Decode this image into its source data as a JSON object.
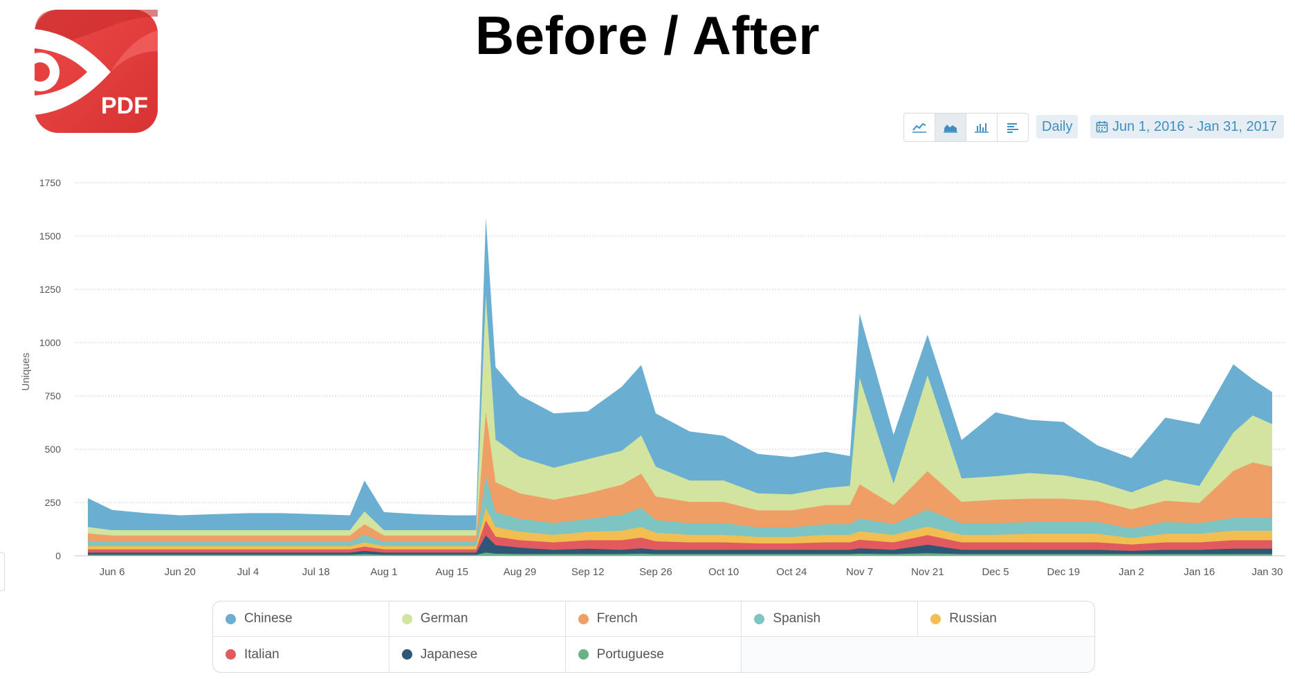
{
  "header": {
    "title": "Before / After",
    "logo_text": "PDF"
  },
  "toolbar": {
    "buttons": [
      {
        "icon": "line-chart-icon",
        "active": false
      },
      {
        "icon": "area-chart-icon",
        "active": true
      },
      {
        "icon": "bar-chart-icon",
        "active": false
      },
      {
        "icon": "horizontal-bar-icon",
        "active": false
      }
    ],
    "granularity": "Daily",
    "date_range": "Jun 1, 2016 - Jan 31, 2017",
    "date_icon": "calendar-icon"
  },
  "colors": {
    "accent": "#3e8fc0",
    "logo_red": "#e5403f"
  },
  "chart_data": {
    "type": "area",
    "stacked": true,
    "ylabel": "Uniques",
    "ylim": [
      0,
      1750
    ],
    "yticks": [
      "0",
      "250",
      "500",
      "750",
      "1000",
      "1250",
      "1500",
      "1750"
    ],
    "xlim": [
      "2016-06-01",
      "2017-01-31"
    ],
    "xticks": [
      {
        "label": "Jun 6",
        "date": "2016-06-06"
      },
      {
        "label": "Jun 20",
        "date": "2016-06-20"
      },
      {
        "label": "Jul 4",
        "date": "2016-07-04"
      },
      {
        "label": "Jul 18",
        "date": "2016-07-18"
      },
      {
        "label": "Aug 1",
        "date": "2016-08-01"
      },
      {
        "label": "Aug 15",
        "date": "2016-08-15"
      },
      {
        "label": "Aug 29",
        "date": "2016-08-29"
      },
      {
        "label": "Sep 12",
        "date": "2016-09-12"
      },
      {
        "label": "Sep 26",
        "date": "2016-09-26"
      },
      {
        "label": "Oct 10",
        "date": "2016-10-10"
      },
      {
        "label": "Oct 24",
        "date": "2016-10-24"
      },
      {
        "label": "Nov 7",
        "date": "2016-11-07"
      },
      {
        "label": "Nov 21",
        "date": "2016-11-21"
      },
      {
        "label": "Dec 5",
        "date": "2016-12-05"
      },
      {
        "label": "Dec 19",
        "date": "2016-12-19"
      },
      {
        "label": "Jan 2",
        "date": "2017-01-02"
      },
      {
        "label": "Jan 16",
        "date": "2017-01-16"
      },
      {
        "label": "Jan 30",
        "date": "2017-01-30"
      }
    ],
    "grid": true,
    "legend_position": "bottom",
    "x": [
      "2016-06-01",
      "2016-06-06",
      "2016-06-13",
      "2016-06-20",
      "2016-06-27",
      "2016-07-04",
      "2016-07-11",
      "2016-07-18",
      "2016-07-25",
      "2016-07-28",
      "2016-08-01",
      "2016-08-08",
      "2016-08-15",
      "2016-08-20",
      "2016-08-22",
      "2016-08-24",
      "2016-08-29",
      "2016-09-05",
      "2016-09-12",
      "2016-09-19",
      "2016-09-23",
      "2016-09-26",
      "2016-10-03",
      "2016-10-10",
      "2016-10-17",
      "2016-10-24",
      "2016-10-31",
      "2016-11-05",
      "2016-11-07",
      "2016-11-14",
      "2016-11-21",
      "2016-11-28",
      "2016-12-05",
      "2016-12-12",
      "2016-12-19",
      "2016-12-26",
      "2017-01-02",
      "2017-01-09",
      "2017-01-16",
      "2017-01-23",
      "2017-01-27",
      "2017-01-31"
    ],
    "series": [
      {
        "name": "Portuguese",
        "color": "#6ab187",
        "values": [
          5,
          5,
          5,
          5,
          5,
          5,
          5,
          5,
          5,
          8,
          5,
          5,
          5,
          5,
          15,
          10,
          8,
          8,
          8,
          8,
          10,
          8,
          8,
          8,
          8,
          8,
          8,
          8,
          10,
          8,
          12,
          8,
          8,
          8,
          8,
          8,
          8,
          8,
          8,
          8,
          8,
          8
        ]
      },
      {
        "name": "Japanese",
        "color": "#2e5676",
        "values": [
          10,
          10,
          10,
          10,
          10,
          10,
          10,
          10,
          10,
          15,
          10,
          10,
          10,
          10,
          80,
          40,
          30,
          20,
          25,
          20,
          25,
          20,
          20,
          20,
          20,
          20,
          20,
          20,
          25,
          20,
          40,
          20,
          20,
          20,
          20,
          20,
          15,
          20,
          20,
          25,
          25,
          25
        ]
      },
      {
        "name": "Italian",
        "color": "#e05a5e",
        "values": [
          15,
          15,
          15,
          15,
          15,
          15,
          15,
          15,
          15,
          20,
          15,
          15,
          15,
          15,
          70,
          40,
          35,
          35,
          40,
          45,
          50,
          40,
          35,
          35,
          30,
          30,
          35,
          35,
          40,
          35,
          45,
          35,
          35,
          35,
          35,
          35,
          30,
          35,
          35,
          40,
          40,
          40
        ]
      },
      {
        "name": "Russian",
        "color": "#f2be52",
        "values": [
          15,
          15,
          15,
          15,
          15,
          15,
          15,
          15,
          15,
          20,
          15,
          15,
          15,
          15,
          60,
          45,
          40,
          35,
          40,
          45,
          50,
          40,
          35,
          35,
          30,
          30,
          35,
          35,
          40,
          35,
          40,
          35,
          35,
          40,
          40,
          40,
          30,
          40,
          40,
          45,
          45,
          45
        ]
      },
      {
        "name": "Spanish",
        "color": "#7dc4c3",
        "values": [
          25,
          20,
          20,
          20,
          20,
          20,
          20,
          20,
          20,
          35,
          20,
          20,
          20,
          20,
          150,
          70,
          60,
          55,
          60,
          75,
          90,
          60,
          55,
          55,
          45,
          45,
          50,
          50,
          60,
          50,
          80,
          55,
          55,
          55,
          55,
          55,
          45,
          55,
          50,
          60,
          60,
          60
        ]
      },
      {
        "name": "French",
        "color": "#ef9e66",
        "values": [
          35,
          30,
          30,
          30,
          30,
          30,
          30,
          30,
          30,
          50,
          30,
          30,
          30,
          30,
          300,
          140,
          120,
          110,
          120,
          140,
          160,
          110,
          100,
          100,
          80,
          80,
          90,
          90,
          160,
          90,
          180,
          100,
          110,
          110,
          110,
          100,
          90,
          100,
          95,
          220,
          260,
          240
        ]
      },
      {
        "name": "German",
        "color": "#d3e49e",
        "values": [
          30,
          25,
          25,
          25,
          25,
          25,
          25,
          25,
          25,
          60,
          25,
          25,
          25,
          25,
          550,
          200,
          170,
          150,
          160,
          160,
          180,
          140,
          100,
          100,
          80,
          75,
          80,
          90,
          500,
          100,
          450,
          110,
          110,
          120,
          110,
          90,
          80,
          100,
          80,
          180,
          220,
          200
        ]
      },
      {
        "name": "Chinese",
        "color": "#6aaed2",
        "values": [
          135,
          95,
          80,
          70,
          75,
          80,
          80,
          75,
          70,
          145,
          85,
          75,
          70,
          70,
          360,
          340,
          290,
          255,
          225,
          300,
          330,
          250,
          230,
          210,
          185,
          175,
          170,
          140,
          300,
          230,
          190,
          180,
          300,
          250,
          250,
          170,
          160,
          290,
          290,
          320,
          170,
          150
        ]
      }
    ]
  }
}
